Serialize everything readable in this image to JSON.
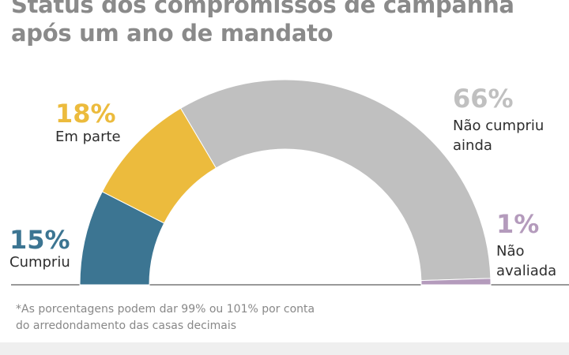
{
  "title": {
    "line1": "Status dos compromissos de campanha",
    "line2": "após um ano de mandato"
  },
  "chart_data": {
    "type": "pie",
    "variant": "semi-donut",
    "title": "Status dos compromissos de campanha após um ano de mandato",
    "categories": [
      "Cumpriu",
      "Em parte",
      "Não cumpriu ainda",
      "Não avaliada"
    ],
    "values": [
      15,
      18,
      66,
      1
    ],
    "labels": [
      "15%",
      "18%",
      "66%",
      "1%"
    ],
    "colors": [
      "#3c7592",
      "#ecbb3d",
      "#c0c0c0",
      "#b49bbc"
    ]
  },
  "segments": [
    {
      "pct": "15%",
      "label_lines": [
        "Cumpriu"
      ],
      "color": "#3c7592"
    },
    {
      "pct": "18%",
      "label_lines": [
        "Em parte"
      ],
      "color": "#ecbb3d"
    },
    {
      "pct": "66%",
      "label_lines": [
        "Não cumpriu",
        "ainda"
      ],
      "color": "#c0c0c0"
    },
    {
      "pct": "1%",
      "label_lines": [
        "Não",
        "avaliada"
      ],
      "color": "#b49bbc"
    }
  ],
  "footnote": {
    "line1": "*As porcentagens podem dar 99% ou 101% por conta",
    "line2": "do arredondamento das casas decimais"
  }
}
